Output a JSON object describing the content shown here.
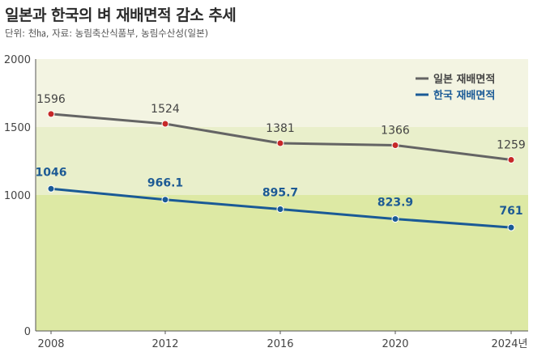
{
  "header": {
    "title": "일본과 한국의 벼 재배면적 감소 추세",
    "subtitle": "단위: 천㏊, 자료: 농림축산식품부, 농림수산성(일본)"
  },
  "colors": {
    "japan_line": "#646464",
    "japan_point": "#c62828",
    "korea_line": "#1a5a96",
    "korea_point": "#1a5a96",
    "band_top": "#f3f4e2",
    "band_mid": "#e9efcb",
    "band_bottom": "#dde9a4"
  },
  "chart_data": {
    "type": "line",
    "title": "일본과 한국의 벼 재배면적 감소 추세",
    "x": [
      "2008",
      "2012",
      "2016",
      "2020",
      "2024년"
    ],
    "series": [
      {
        "name": "일본 재배면적",
        "values": [
          1596,
          1524,
          1381,
          1366,
          1259
        ],
        "labels": [
          "1596",
          "1524",
          "1381",
          "1366",
          "1259"
        ]
      },
      {
        "name": "한국 재배면적",
        "values": [
          1046,
          966.1,
          895.7,
          823.9,
          761
        ],
        "labels": [
          "1046",
          "966.1",
          "895.7",
          "823.9",
          "761"
        ]
      }
    ],
    "ylim": [
      0,
      2000
    ],
    "yticks": [
      "0",
      "1000",
      "1500",
      "2000"
    ],
    "legend": "top-right",
    "grid": false
  }
}
